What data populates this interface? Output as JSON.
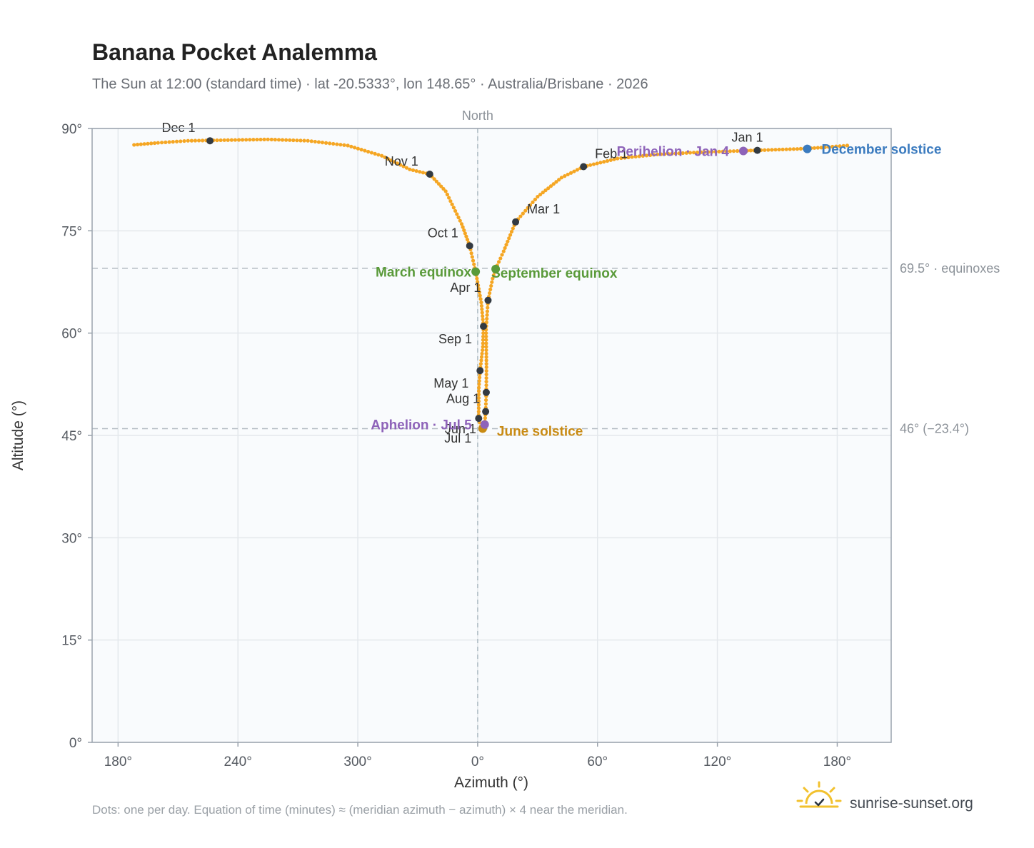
{
  "chart_data": {
    "type": "scatter",
    "title": "Banana Pocket Analemma",
    "subtitle": "The Sun at 12:00 (standard time) · lat -20.5333°, lon 148.65° · Australia/Brisbane · 2026",
    "xlabel": "Azimuth (°)",
    "ylabel": "Altitude (°)",
    "x_ticks": [
      "180°",
      "240°",
      "300°",
      "0°",
      "60°",
      "120°",
      "180°"
    ],
    "y_ticks": [
      "0°",
      "15°",
      "30°",
      "45°",
      "60°",
      "75°",
      "90°"
    ],
    "x_tick_values": [
      -180,
      -120,
      -60,
      0,
      60,
      120,
      180
    ],
    "y_tick_values": [
      0,
      15,
      30,
      45,
      60,
      75,
      90
    ],
    "xlim": [
      -193,
      207
    ],
    "ylim": [
      0,
      90
    ],
    "grid": true,
    "north_label": "North",
    "reference_lines": [
      {
        "altitude": 69.5,
        "label": "69.5° · equinoxes"
      },
      {
        "altitude": 46,
        "label": "46° (−23.4°)"
      }
    ],
    "series": [
      {
        "color": "#f5a623",
        "waypoints": [
          {
            "x": -172,
            "y": 87.6
          },
          {
            "x": -160,
            "y": 87.9
          },
          {
            "x": -145,
            "y": 88.2
          },
          {
            "x": -125,
            "y": 88.3
          },
          {
            "x": -105,
            "y": 88.4
          },
          {
            "x": -85,
            "y": 88.2
          },
          {
            "x": -65,
            "y": 87.5
          },
          {
            "x": -48,
            "y": 86.0
          },
          {
            "x": -34,
            "y": 84.0
          },
          {
            "x": -24,
            "y": 83.3
          },
          {
            "x": -16,
            "y": 80.8
          },
          {
            "x": -8,
            "y": 76.0
          },
          {
            "x": -4,
            "y": 72.8
          },
          {
            "x": -1,
            "y": 69.0
          },
          {
            "x": 1.8,
            "y": 64.5
          },
          {
            "x": 2.9,
            "y": 61.0
          },
          {
            "x": 2.6,
            "y": 58.0
          },
          {
            "x": 1.2,
            "y": 54.5
          },
          {
            "x": 0.6,
            "y": 52.0
          },
          {
            "x": 0.5,
            "y": 47.5
          },
          {
            "x": 1.5,
            "y": 46.3
          },
          {
            "x": 2.5,
            "y": 46.0
          },
          {
            "x": 3.5,
            "y": 46.6
          },
          {
            "x": 4.0,
            "y": 48.5
          },
          {
            "x": 4.3,
            "y": 51.3
          },
          {
            "x": 4.4,
            "y": 55.0
          },
          {
            "x": 4.2,
            "y": 60.5
          },
          {
            "x": 5.2,
            "y": 64.8
          },
          {
            "x": 7.5,
            "y": 68.0
          },
          {
            "x": 9,
            "y": 69.4
          },
          {
            "x": 13,
            "y": 72.0
          },
          {
            "x": 19,
            "y": 76.3
          },
          {
            "x": 30,
            "y": 80.0
          },
          {
            "x": 42,
            "y": 82.8
          },
          {
            "x": 53,
            "y": 84.4
          },
          {
            "x": 70,
            "y": 85.6
          },
          {
            "x": 90,
            "y": 86.2
          },
          {
            "x": 110,
            "y": 86.5
          },
          {
            "x": 130,
            "y": 86.7
          },
          {
            "x": 140,
            "y": 86.8
          },
          {
            "x": 160,
            "y": 87.0
          },
          {
            "x": 172,
            "y": 87.2
          },
          {
            "x": 185,
            "y": 87.5
          }
        ]
      }
    ],
    "month_markers": [
      {
        "label": "Jan 1",
        "x": 140,
        "y": 86.8
      },
      {
        "label": "Feb 1",
        "x": 53,
        "y": 84.4
      },
      {
        "label": "Mar 1",
        "x": 19,
        "y": 76.3
      },
      {
        "label": "Apr 1",
        "x": 5.2,
        "y": 64.8
      },
      {
        "label": "May 1",
        "x": 1.2,
        "y": 54.5
      },
      {
        "label": "Jun 1",
        "x": 4.3,
        "y": 51.3
      },
      {
        "label": "Jul 1",
        "x": 0.5,
        "y": 47.5
      },
      {
        "label": "Aug 1",
        "x": 4.0,
        "y": 48.5
      },
      {
        "label": "Sep 1",
        "x": 2.9,
        "y": 61.0
      },
      {
        "label": "Oct 1",
        "x": -4,
        "y": 72.8
      },
      {
        "label": "Nov 1",
        "x": -24,
        "y": 83.3
      },
      {
        "label": "Dec 1",
        "x": -134,
        "y": 88.2
      }
    ],
    "events": [
      {
        "label": "March equinox",
        "x": -1,
        "y": 69.0,
        "color": "#5a9a3a"
      },
      {
        "label": "September equinox",
        "x": 9,
        "y": 69.4,
        "color": "#5a9a3a"
      },
      {
        "label": "June solstice",
        "x": 2.5,
        "y": 46.0,
        "color": "#c98b14"
      },
      {
        "label": "December solstice",
        "x": 165,
        "y": 87.0,
        "color": "#3b7bbf"
      },
      {
        "label": "Perihelion · Jan 4",
        "x": 133,
        "y": 86.7,
        "color": "#8e63b9"
      },
      {
        "label": "Aphelion · Jul 5",
        "x": 3.5,
        "y": 46.6,
        "color": "#8e63b9"
      }
    ],
    "footnote": "Dots: one per day. Equation of time (minutes) ≈ (meridian azimuth − azimuth) × 4 near the meridian.",
    "brand": "sunrise-sunset.org"
  }
}
